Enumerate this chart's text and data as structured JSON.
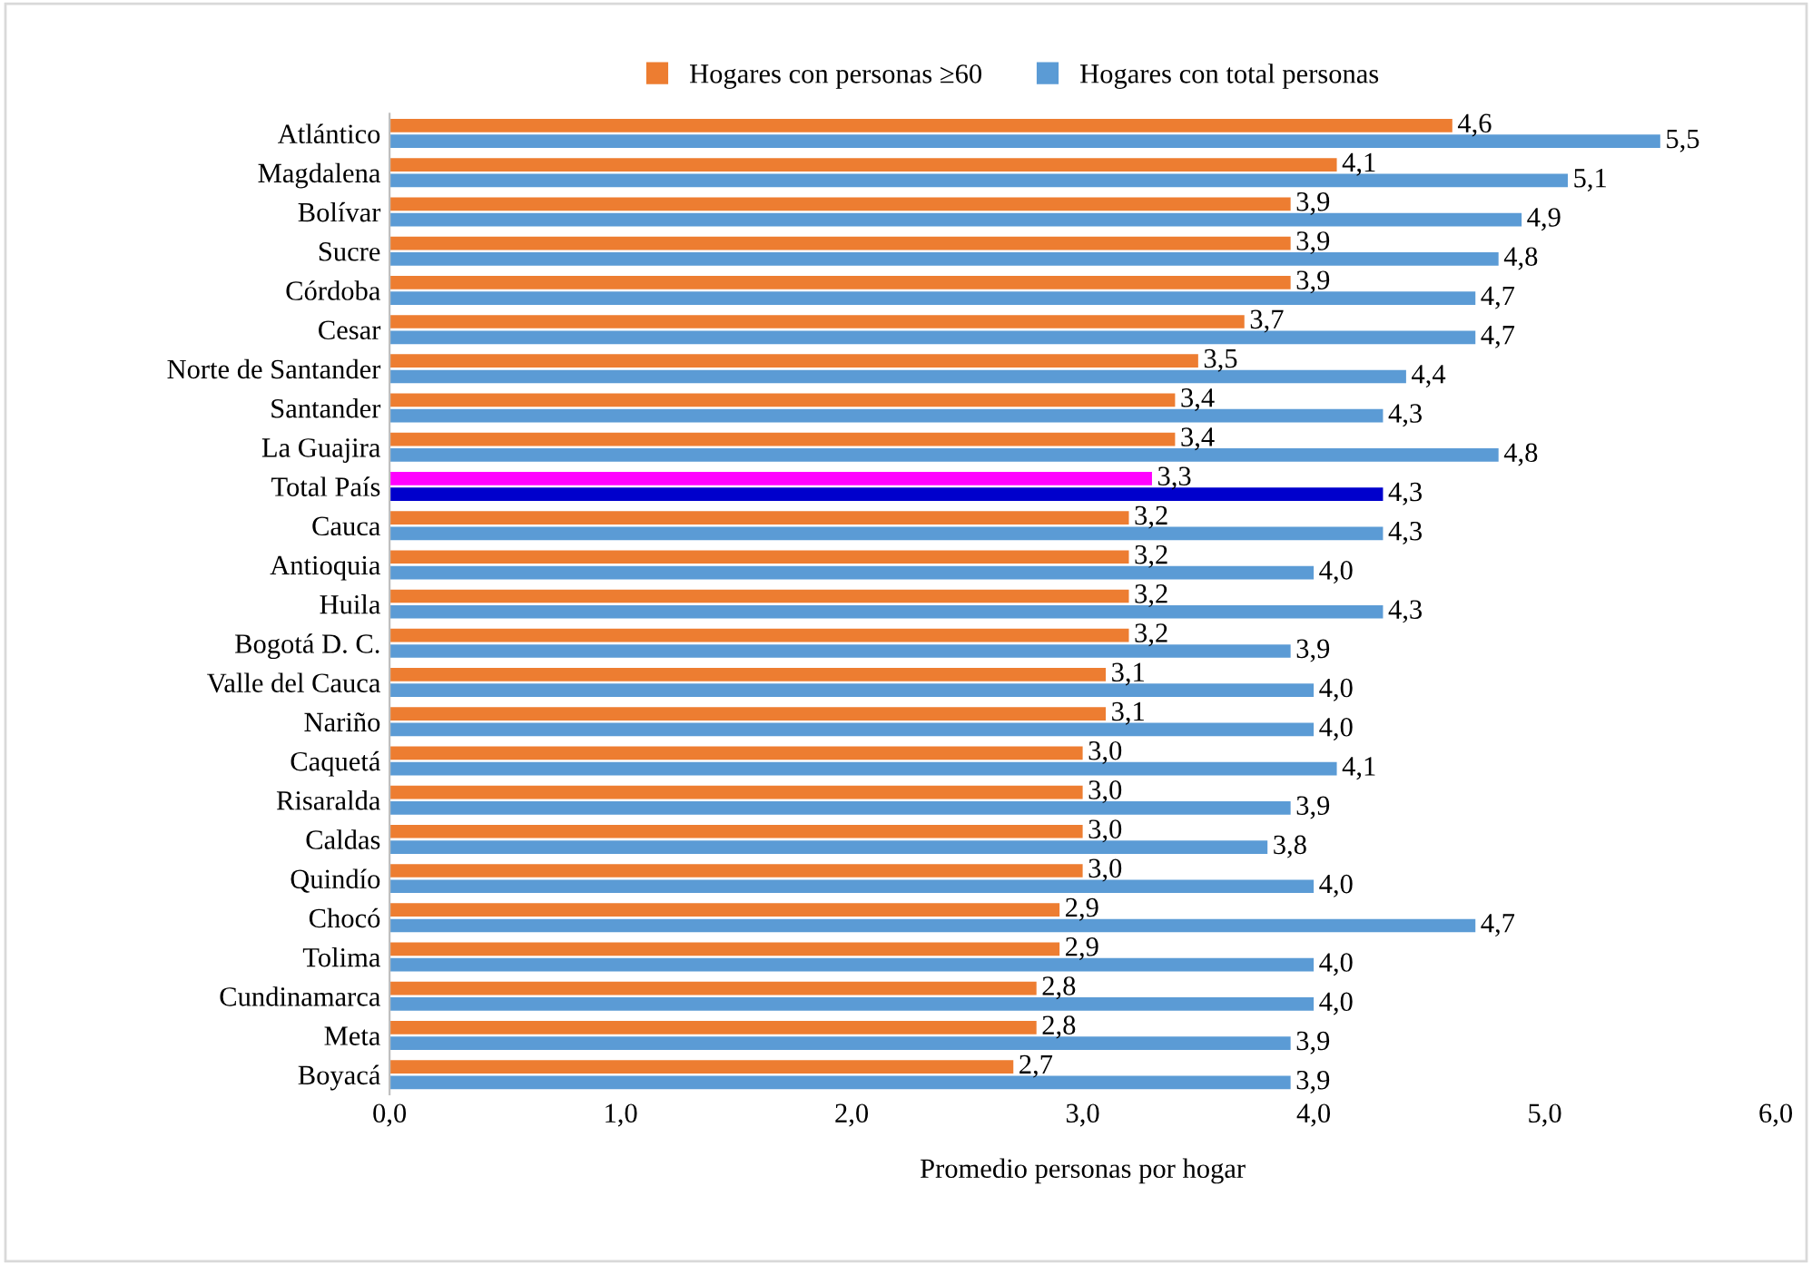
{
  "chart_data": {
    "type": "bar",
    "orientation": "horizontal",
    "xlabel": "Promedio personas por hogar",
    "categories": [
      "Atlántico",
      "Magdalena",
      "Bolívar",
      "Sucre",
      "Córdoba",
      "Cesar",
      "Norte de Santander",
      "Santander",
      "La Guajira",
      "Total País",
      "Cauca",
      "Antioquia",
      "Huila",
      "Bogotá D. C.",
      "Valle del Cauca",
      "Nariño",
      "Caquetá",
      "Risaralda",
      "Caldas",
      "Quindío",
      "Chocó",
      "Tolima",
      "Cundinamarca",
      "Meta",
      "Boyacá"
    ],
    "series": [
      {
        "name": "Hogares con personas ≥60",
        "color": "#ed7d31",
        "colors": [
          "#ed7d31",
          "#ed7d31",
          "#ed7d31",
          "#ed7d31",
          "#ed7d31",
          "#ed7d31",
          "#ed7d31",
          "#ed7d31",
          "#ed7d31",
          "#ff00ff",
          "#ed7d31",
          "#ed7d31",
          "#ed7d31",
          "#ed7d31",
          "#ed7d31",
          "#ed7d31",
          "#ed7d31",
          "#ed7d31",
          "#ed7d31",
          "#ed7d31",
          "#ed7d31",
          "#ed7d31",
          "#ed7d31",
          "#ed7d31",
          "#ed7d31"
        ],
        "values": [
          4.6,
          4.1,
          3.9,
          3.9,
          3.9,
          3.7,
          3.5,
          3.4,
          3.4,
          3.3,
          3.2,
          3.2,
          3.2,
          3.2,
          3.1,
          3.1,
          3.0,
          3.0,
          3.0,
          3.0,
          2.9,
          2.9,
          2.8,
          2.8,
          2.7
        ],
        "value_labels": [
          "4,6",
          "4,1",
          "3,9",
          "3,9",
          "3,9",
          "3,7",
          "3,5",
          "3,4",
          "3,4",
          "3,3",
          "3,2",
          "3,2",
          "3,2",
          "3,2",
          "3,1",
          "3,1",
          "3,0",
          "3,0",
          "3,0",
          "3,0",
          "2,9",
          "2,9",
          "2,8",
          "2,8",
          "2,7"
        ]
      },
      {
        "name": "Hogares con total personas",
        "color": "#5b9bd5",
        "colors": [
          "#5b9bd5",
          "#5b9bd5",
          "#5b9bd5",
          "#5b9bd5",
          "#5b9bd5",
          "#5b9bd5",
          "#5b9bd5",
          "#5b9bd5",
          "#5b9bd5",
          "#0000cc",
          "#5b9bd5",
          "#5b9bd5",
          "#5b9bd5",
          "#5b9bd5",
          "#5b9bd5",
          "#5b9bd5",
          "#5b9bd5",
          "#5b9bd5",
          "#5b9bd5",
          "#5b9bd5",
          "#5b9bd5",
          "#5b9bd5",
          "#5b9bd5",
          "#5b9bd5",
          "#5b9bd5"
        ],
        "values": [
          5.5,
          5.1,
          4.9,
          4.8,
          4.7,
          4.7,
          4.4,
          4.3,
          4.8,
          4.3,
          4.3,
          4.0,
          4.3,
          3.9,
          4.0,
          4.0,
          4.1,
          3.9,
          3.8,
          4.0,
          4.7,
          4.0,
          4.0,
          3.9,
          3.9
        ],
        "value_labels": [
          "5,5",
          "5,1",
          "4,9",
          "4,8",
          "4,7",
          "4,7",
          "4,4",
          "4,3",
          "4,8",
          "4,3",
          "4,3",
          "4,0",
          "4,3",
          "3,9",
          "4,0",
          "4,0",
          "4,1",
          "3,9",
          "3,8",
          "4,0",
          "4,7",
          "4,0",
          "4,0",
          "3,9",
          "3,9"
        ]
      }
    ],
    "xlim": [
      0,
      6
    ],
    "xticks": [
      {
        "value": 0,
        "label": "0,0"
      },
      {
        "value": 1,
        "label": "1,0"
      },
      {
        "value": 2,
        "label": "2,0"
      },
      {
        "value": 3,
        "label": "3,0"
      },
      {
        "value": 4,
        "label": "4,0"
      },
      {
        "value": 5,
        "label": "5,0"
      },
      {
        "value": 6,
        "label": "6,0"
      }
    ],
    "grid": false,
    "legend": "top"
  }
}
